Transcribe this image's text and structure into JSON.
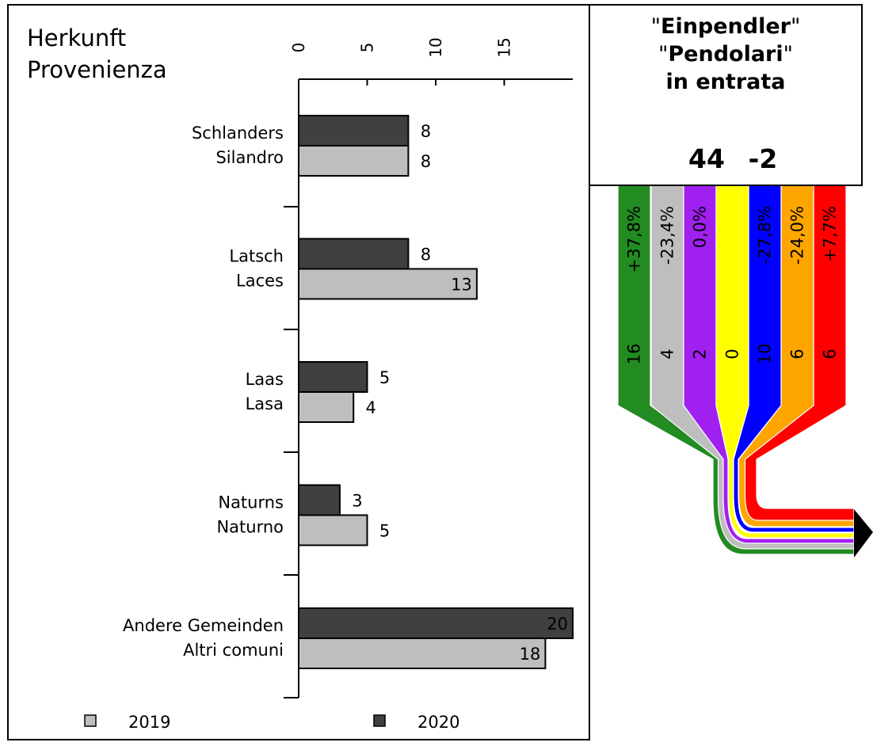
{
  "header": {
    "title_de": "Herkunft",
    "title_it": "Provenienza"
  },
  "info_box": {
    "line1_quote_open": "\"",
    "line1_bold": "Einpendler",
    "line1_quote_close": "\"",
    "line2_quote_open": "\"",
    "line2_bold": "Pendolari",
    "line2_quote_close": "\"",
    "line3": "in entrata",
    "total": "44",
    "change": "-2"
  },
  "flow": {
    "bands": [
      {
        "color": "#228b22",
        "count": "16",
        "percent": "+37,8%",
        "text_color": "#ffffff"
      },
      {
        "color": "#bebebe",
        "count": "4",
        "percent": "-23,4%",
        "text_color": "#000000"
      },
      {
        "color": "#a020f0",
        "count": "2",
        "percent": "0,0%",
        "text_color": "#ffffff"
      },
      {
        "color": "#ffff00",
        "count": "0",
        "percent": "",
        "text_color": "#000000"
      },
      {
        "color": "#0000ff",
        "count": "10",
        "percent": "-27,8%",
        "text_color": "#ffffff"
      },
      {
        "color": "#ffa500",
        "count": "6",
        "percent": "-24,0%",
        "text_color": "#000000"
      },
      {
        "color": "#ff0000",
        "count": "6",
        "percent": "+7,7%",
        "text_color": "#ffffff"
      }
    ]
  },
  "chart_data": {
    "type": "bar",
    "orientation": "horizontal",
    "categories": [
      {
        "de": "Schlanders",
        "it": "Silandro"
      },
      {
        "de": "Latsch",
        "it": "Laces"
      },
      {
        "de": "Laas",
        "it": "Lasa"
      },
      {
        "de": "Naturns",
        "it": "Naturno"
      },
      {
        "de": "Andere Gemeinden",
        "it": "Altri comuni"
      }
    ],
    "series": [
      {
        "name": "2020",
        "color": "#404040",
        "values": [
          8,
          8,
          5,
          3,
          20
        ],
        "labels": [
          "8",
          "8",
          "5",
          "3",
          "20"
        ]
      },
      {
        "name": "2019",
        "color": "#bebebe",
        "values": [
          8,
          13,
          4,
          5,
          18
        ],
        "labels": [
          "8",
          "13",
          "4",
          "5",
          "18"
        ]
      }
    ],
    "xlim": [
      0,
      20
    ],
    "ticks": [
      0,
      5,
      10,
      15
    ],
    "tick_labels": [
      "0",
      "5",
      "10",
      "15"
    ],
    "legend": [
      {
        "label": "2019",
        "color": "#bebebe"
      },
      {
        "label": "2020",
        "color": "#404040"
      }
    ],
    "legend_position": "bottom",
    "grid": false
  }
}
